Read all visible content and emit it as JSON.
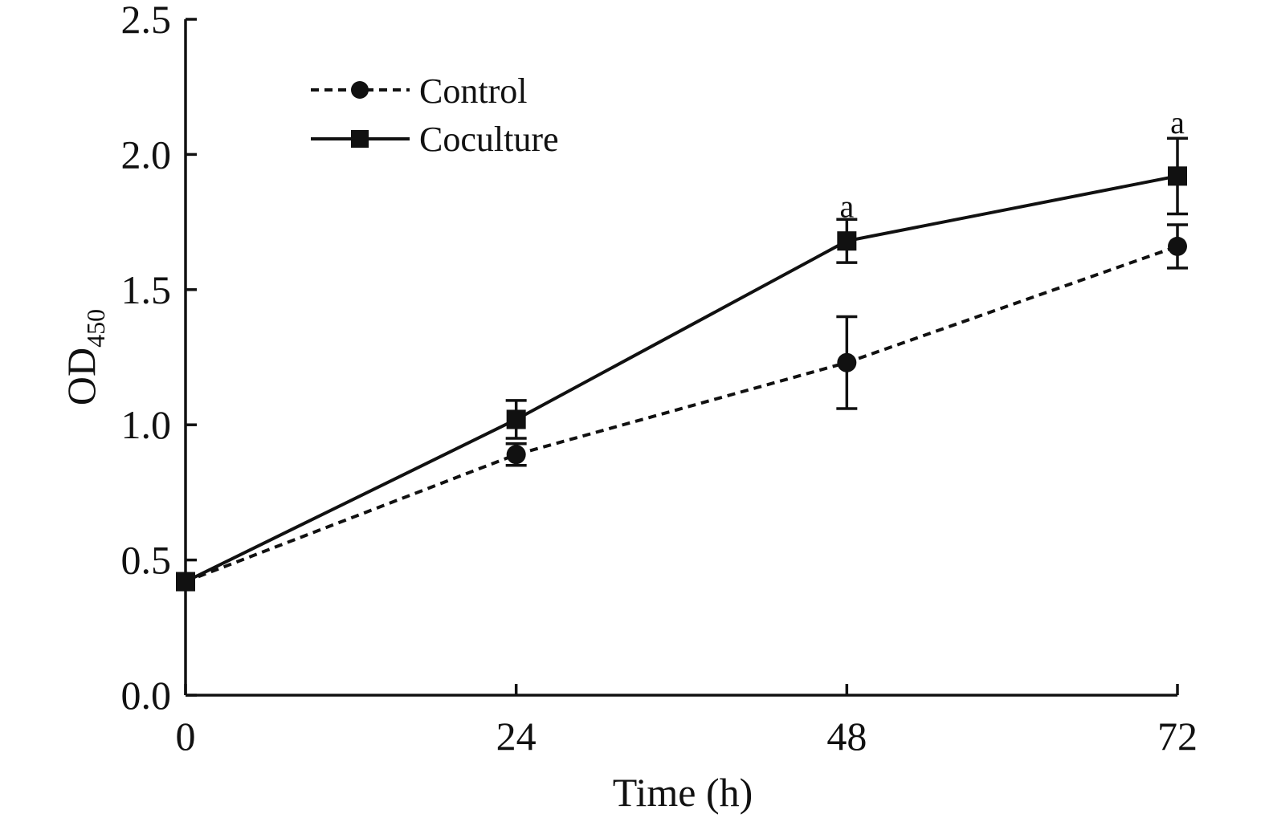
{
  "chart_data": {
    "type": "line",
    "title": "",
    "xlabel": "Time (h)",
    "ylabel_main": "OD",
    "ylabel_sub": "450",
    "x": [
      0,
      24,
      48,
      72
    ],
    "x_ticks": [
      "0",
      "24",
      "48",
      "72"
    ],
    "xlim": [
      0,
      72
    ],
    "ylim": [
      0,
      2.5
    ],
    "y_ticks": [
      "0.0",
      "0.5",
      "1.0",
      "1.5",
      "2.0",
      "2.5"
    ],
    "grid": false,
    "legend_position": "top-left",
    "series": [
      {
        "name": "Control",
        "marker": "circle",
        "line_style": "dashed",
        "color": "#111111",
        "values": [
          0.42,
          0.89,
          1.23,
          1.66
        ],
        "errors": [
          0.02,
          0.04,
          0.17,
          0.08
        ]
      },
      {
        "name": "Coculture",
        "marker": "square",
        "line_style": "solid",
        "color": "#111111",
        "values": [
          0.42,
          1.02,
          1.68,
          1.92
        ],
        "errors": [
          0.02,
          0.07,
          0.08,
          0.14
        ]
      }
    ],
    "annotations": [
      {
        "x": 48,
        "y": 1.81,
        "text": "a"
      },
      {
        "x": 72,
        "y": 2.12,
        "text": "a"
      }
    ]
  }
}
